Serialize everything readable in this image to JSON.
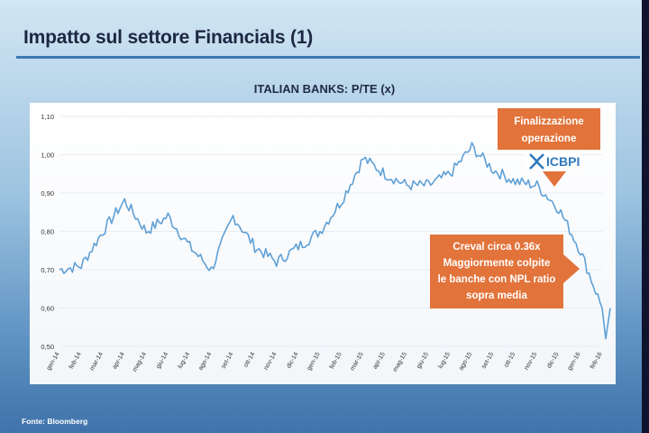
{
  "slide": {
    "title": "Impatto sul settore Financials (1)",
    "source": "Fonte: Bloomberg"
  },
  "colors": {
    "line": "#5fa0d6",
    "callout": "#e2733a",
    "title_rule": "#3c78b3",
    "logo": "#2e79bd"
  },
  "annotations": {
    "finalizzazione": {
      "line1": "Finalizzazione",
      "line2": "operazione",
      "logo_text": "ICBPI",
      "logo_icon": "icbpi-x-icon"
    },
    "creval": {
      "line1": "Creval circa 0.36x",
      "line2": "Maggiormente colpite",
      "line3": "le banche con NPL ratio",
      "line4": "sopra media"
    }
  },
  "chart_data": {
    "type": "line",
    "title": "ITALIAN BANKS: P/TE (x)",
    "xlabel": "",
    "ylabel": "",
    "ylim": [
      0.5,
      1.1
    ],
    "yticks": [
      "0,50",
      "0,60",
      "0,70",
      "0,80",
      "0,90",
      "1,00",
      "1,10"
    ],
    "xticks": [
      "gen-14",
      "feb-14",
      "mar-14",
      "apr-14",
      "mag-14",
      "giu-14",
      "lug-14",
      "ago-14",
      "set-14",
      "ott-14",
      "nov-14",
      "dic-14",
      "gen-15",
      "feb-15",
      "mar-15",
      "apr-15",
      "mag-15",
      "giu-15",
      "lug-15",
      "ago-15",
      "set-15",
      "ott-15",
      "nov-15",
      "dic-15",
      "gen-16",
      "feb-16"
    ],
    "grid": true,
    "x": [
      "gen-14",
      "feb-14",
      "mar-14",
      "apr-14",
      "mag-14",
      "giu-14",
      "lug-14",
      "ago-14",
      "set-14",
      "ott-14",
      "nov-14",
      "dic-14",
      "gen-15",
      "feb-15",
      "mar-15",
      "apr-15",
      "mag-15",
      "giu-15",
      "lug-15",
      "ago-15",
      "set-15",
      "ott-15",
      "nov-15",
      "dic-15",
      "gen-16",
      "feb-16"
    ],
    "series": [
      {
        "values": [
          0.7,
          0.71,
          0.8,
          0.88,
          0.8,
          0.84,
          0.76,
          0.7,
          0.84,
          0.76,
          0.72,
          0.76,
          0.8,
          0.88,
          0.99,
          0.95,
          0.92,
          0.92,
          0.95,
          1.02,
          0.96,
          0.93,
          0.92,
          0.86,
          0.75,
          0.6
        ]
      }
    ]
  }
}
